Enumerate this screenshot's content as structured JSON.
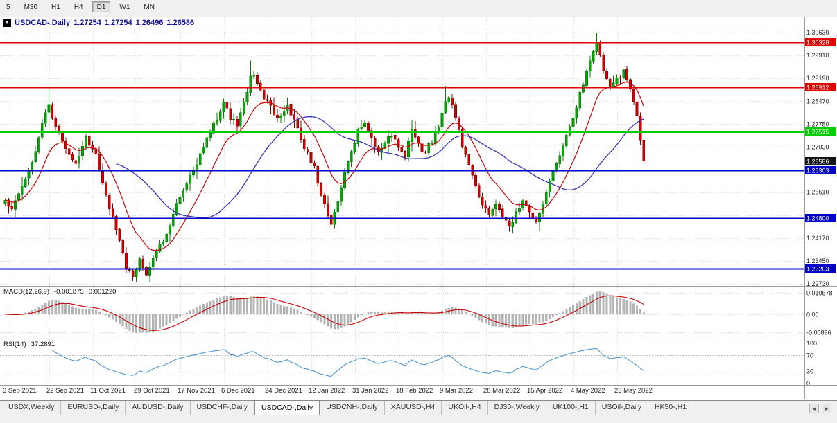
{
  "colors": {
    "up": "#0aa50a",
    "up_border": "#067d06",
    "down": "#d30000",
    "down_border": "#8f0000",
    "ma_fast": "#c80000",
    "ma_slow": "#3535b5",
    "macd_hist": "#b4b4b4",
    "macd_signal": "#c80000",
    "rsi_line": "#4f94cd",
    "grid": "#d9d9d9",
    "current_badge": "#151515"
  },
  "toolbar": {
    "timeframes": [
      "5",
      "M30",
      "H1",
      "H4",
      "D1",
      "W1",
      "MN"
    ],
    "active": "D1"
  },
  "chart_header": {
    "dropdown_icon": "▼",
    "symbol": "USDCAD-,Daily",
    "open": "1.27254",
    "high": "1.27254",
    "low": "1.26496",
    "close": "1.26586"
  },
  "macd_panel": {
    "name": "MACD(12,26,9)",
    "value_main": "-0.001875",
    "value_signal": "0.001220",
    "axis_labels": [
      {
        "text": "0.010578",
        "value": 0.010578
      },
      {
        "text": "0.00",
        "value": 0
      },
      {
        "text": "-0.00896",
        "value": -0.00896
      }
    ]
  },
  "rsi_panel": {
    "name": "RSI(14)",
    "value": "37.2891",
    "levels": [
      70,
      30
    ],
    "axis_labels": [
      {
        "text": "100",
        "value": 100
      },
      {
        "text": "70",
        "value": 70
      },
      {
        "text": "30",
        "value": 30
      },
      {
        "text": "0",
        "value": 0
      }
    ]
  },
  "price_axis": {
    "plain_labels": [
      "1.30630",
      "1.29910",
      "1.29190",
      "1.28470",
      "1.27750",
      "1.27030",
      "1.25610",
      "1.24170",
      "1.23450",
      "1.22730"
    ],
    "grid_values": [
      1.3063,
      1.29912,
      1.29194,
      1.28476,
      1.27757,
      1.27039,
      1.26321,
      1.25603,
      1.24884,
      1.24166,
      1.23448,
      1.2273
    ]
  },
  "tabs": {
    "items": [
      "USDX,Weekly",
      "EURUSD-,Daily",
      "AUDUSD-,Daily",
      "USDCHF-,Daily",
      "USDCAD-,Daily",
      "USDCNH-,Daily",
      "XAUUSD-,H4",
      "UKOil-,H4",
      "DJ30-,Weekly",
      "UK100-,H1",
      "USOil-,Daily",
      "HK50-,H1"
    ],
    "active": "USDCAD-,Daily",
    "scroll_left": "◄",
    "scroll_right": "►"
  },
  "chart_data": {
    "type": "candlestick",
    "symbol": "USDCAD",
    "timeframe": "Daily",
    "title": "USDCAD-,Daily 1.27254 1.27254 1.26496 1.26586",
    "x_labels": [
      "3 Sep 2021",
      "22 Sep 2021",
      "11 Oct 2021",
      "29 Oct 2021",
      "17 Nov 2021",
      "6 Dec 2021",
      "24 Dec 2021",
      "12 Jan 2022",
      "31 Jan 2022",
      "18 Feb 2022",
      "9 Mar 2022",
      "28 Mar 2022",
      "15 Apr 2022",
      "4 May 2022",
      "23 May 2022"
    ],
    "bars_per_label": 13,
    "candle_count": 191,
    "y_axis": {
      "top_price": 1.31131,
      "bottom_price": 1.22665
    },
    "last_candle": {
      "open": 1.27254,
      "high": 1.27254,
      "low": 1.26496,
      "close": 1.26586
    },
    "current_price": {
      "label": "1.26586",
      "value": 1.26586
    },
    "levels": [
      {
        "label": "1.30328",
        "value": 1.30328,
        "color": "#e00000",
        "width": 1.5
      },
      {
        "label": "1.28912",
        "value": 1.28912,
        "color": "#e00000",
        "width": 1.5
      },
      {
        "label": "1.27515",
        "value": 1.27515,
        "color": "#00cc00",
        "width": 3
      },
      {
        "label": "1.26303",
        "value": 1.26303,
        "color": "#0000c8",
        "width": 2
      },
      {
        "label": "1.24800",
        "value": 1.248,
        "color": "#0000c8",
        "width": 2
      },
      {
        "label": "1.23203",
        "value": 1.23203,
        "color": "#0000c8",
        "width": 2
      }
    ],
    "price_anchors": [
      [
        0,
        1.2535
      ],
      [
        2,
        1.25
      ],
      [
        5,
        1.2585
      ],
      [
        8,
        1.2645
      ],
      [
        11,
        1.278
      ],
      [
        13,
        1.283
      ],
      [
        15,
        1.2775
      ],
      [
        18,
        1.2695
      ],
      [
        21,
        1.265
      ],
      [
        24,
        1.2735
      ],
      [
        27,
        1.268
      ],
      [
        30,
        1.255
      ],
      [
        33,
        1.245
      ],
      [
        36,
        1.233
      ],
      [
        38,
        1.2295
      ],
      [
        40,
        1.234
      ],
      [
        42,
        1.2305
      ],
      [
        45,
        1.237
      ],
      [
        48,
        1.243
      ],
      [
        51,
        1.252
      ],
      [
        54,
        1.259
      ],
      [
        57,
        1.265
      ],
      [
        60,
        1.273
      ],
      [
        63,
        1.28
      ],
      [
        65,
        1.2845
      ],
      [
        67,
        1.28
      ],
      [
        69,
        1.2775
      ],
      [
        71,
        1.2845
      ],
      [
        73,
        1.293
      ],
      [
        75,
        1.29
      ],
      [
        77,
        1.2865
      ],
      [
        79,
        1.283
      ],
      [
        81,
        1.2795
      ],
      [
        84,
        1.2825
      ],
      [
        86,
        1.279
      ],
      [
        88,
        1.273
      ],
      [
        90,
        1.2675
      ],
      [
        92,
        1.264
      ],
      [
        94,
        1.255
      ],
      [
        97,
        1.246
      ],
      [
        99,
        1.253
      ],
      [
        101,
        1.2625
      ],
      [
        103,
        1.269
      ],
      [
        105,
        1.276
      ],
      [
        107,
        1.278
      ],
      [
        109,
        1.272
      ],
      [
        111,
        1.2685
      ],
      [
        113,
        1.2715
      ],
      [
        115,
        1.2745
      ],
      [
        117,
        1.2705
      ],
      [
        119,
        1.2665
      ],
      [
        121,
        1.276
      ],
      [
        123,
        1.2715
      ],
      [
        125,
        1.2685
      ],
      [
        127,
        1.2725
      ],
      [
        129,
        1.2765
      ],
      [
        131,
        1.284
      ],
      [
        132,
        1.2865
      ],
      [
        134,
        1.279
      ],
      [
        136,
        1.2705
      ],
      [
        138,
        1.2645
      ],
      [
        140,
        1.2575
      ],
      [
        142,
        1.2525
      ],
      [
        144,
        1.2495
      ],
      [
        146,
        1.2525
      ],
      [
        148,
        1.2485
      ],
      [
        150,
        1.2455
      ],
      [
        152,
        1.2495
      ],
      [
        154,
        1.2535
      ],
      [
        156,
        1.2495
      ],
      [
        158,
        1.2465
      ],
      [
        160,
        1.2525
      ],
      [
        162,
        1.2595
      ],
      [
        164,
        1.2645
      ],
      [
        166,
        1.2705
      ],
      [
        168,
        1.2765
      ],
      [
        170,
        1.2825
      ],
      [
        172,
        1.2905
      ],
      [
        174,
        1.2975
      ],
      [
        176,
        1.303
      ],
      [
        177,
        1.299
      ],
      [
        178,
        1.2945
      ],
      [
        180,
        1.289
      ],
      [
        182,
        1.2925
      ],
      [
        184,
        1.2945
      ],
      [
        186,
        1.2885
      ],
      [
        187,
        1.2845
      ],
      [
        188,
        1.28
      ],
      [
        189,
        1.27254
      ],
      [
        190,
        1.26586
      ]
    ],
    "special_highs": [
      [
        13,
        1.2895
      ],
      [
        73,
        1.2975
      ],
      [
        131,
        1.2895
      ],
      [
        176,
        1.3063
      ]
    ],
    "special_lows": [
      [
        38,
        1.2288
      ],
      [
        97,
        1.245
      ],
      [
        150,
        1.2437
      ]
    ],
    "indicators": {
      "ma_fast": "EMA 13 (red)",
      "ma_slow": "SMA 34 (blue)",
      "macd": "MACD(12,26,9)",
      "rsi": "RSI(14)"
    }
  }
}
